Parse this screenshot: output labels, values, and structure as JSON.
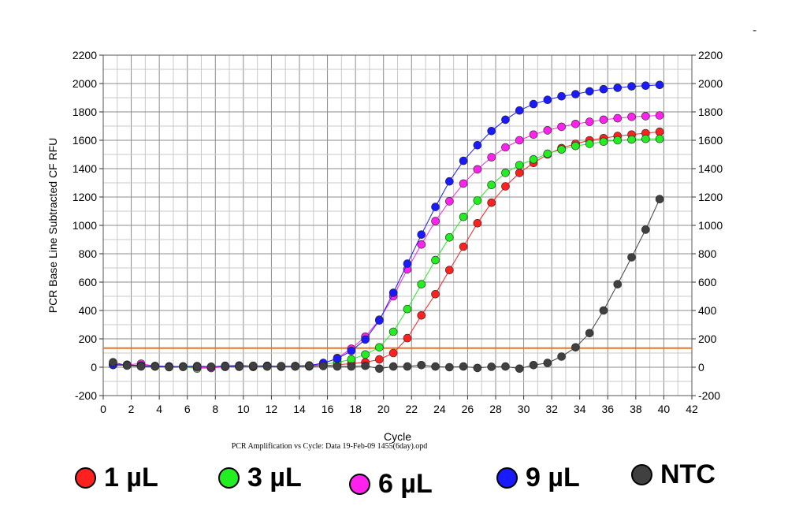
{
  "chart_data": {
    "type": "line",
    "title": "",
    "ylabel": "PCR Base Line Subtracted CF RFU",
    "xlabel": "Cycle",
    "caption": "PCR Amplification vs Cycle: Data 19-Feb-09 1455(6day).opd",
    "corner_mark": "-",
    "xlim": [
      0,
      42
    ],
    "ylim": [
      -200,
      2200
    ],
    "x_ticks": [
      0,
      2,
      4,
      6,
      8,
      10,
      12,
      14,
      16,
      18,
      20,
      22,
      24,
      26,
      28,
      30,
      32,
      34,
      36,
      38,
      40,
      42
    ],
    "y_ticks": [
      -200,
      0,
      200,
      400,
      600,
      800,
      1000,
      1200,
      1400,
      1600,
      1800,
      2000,
      2200
    ],
    "grid": true,
    "threshold": {
      "value": 135,
      "color": "#e87722"
    },
    "x": [
      0.7,
      1.7,
      2.7,
      3.7,
      4.7,
      5.7,
      6.7,
      7.7,
      8.7,
      9.7,
      10.7,
      11.7,
      12.7,
      13.7,
      14.7,
      15.7,
      16.7,
      17.7,
      18.7,
      19.7,
      20.7,
      21.7,
      22.7,
      23.7,
      24.7,
      25.7,
      26.7,
      27.7,
      28.7,
      29.7,
      30.7,
      31.7,
      32.7,
      33.7,
      34.7,
      35.7,
      36.7,
      37.7,
      38.7,
      39.7
    ],
    "series": [
      {
        "name": "1 µL",
        "color": "#ff2020",
        "values": [
          15,
          12,
          10,
          5,
          3,
          5,
          -2,
          0,
          3,
          5,
          2,
          5,
          3,
          5,
          5,
          10,
          18,
          25,
          35,
          55,
          100,
          205,
          365,
          515,
          685,
          850,
          1015,
          1160,
          1275,
          1370,
          1440,
          1500,
          1545,
          1575,
          1600,
          1615,
          1630,
          1640,
          1650,
          1660
        ]
      },
      {
        "name": "3 µL",
        "color": "#22ee22",
        "values": [
          18,
          15,
          12,
          8,
          5,
          3,
          -10,
          -5,
          5,
          3,
          5,
          8,
          5,
          8,
          10,
          18,
          35,
          55,
          90,
          140,
          250,
          410,
          585,
          755,
          915,
          1060,
          1175,
          1285,
          1370,
          1425,
          1465,
          1505,
          1535,
          1560,
          1575,
          1590,
          1600,
          1605,
          1610,
          1610
        ]
      },
      {
        "name": "6 µL",
        "color": "#ff22ee",
        "values": [
          20,
          18,
          25,
          8,
          5,
          3,
          0,
          -5,
          3,
          5,
          8,
          10,
          5,
          8,
          12,
          25,
          65,
          130,
          215,
          335,
          500,
          690,
          865,
          1030,
          1170,
          1295,
          1395,
          1480,
          1550,
          1600,
          1640,
          1670,
          1695,
          1715,
          1730,
          1745,
          1755,
          1765,
          1770,
          1775
        ]
      },
      {
        "name": "9 µL",
        "color": "#1a1aff",
        "values": [
          18,
          15,
          12,
          8,
          5,
          5,
          8,
          3,
          10,
          12,
          8,
          10,
          5,
          8,
          12,
          30,
          60,
          115,
          195,
          330,
          525,
          730,
          935,
          1130,
          1310,
          1455,
          1565,
          1665,
          1745,
          1810,
          1855,
          1885,
          1910,
          1925,
          1945,
          1960,
          1970,
          1980,
          1985,
          1990
        ]
      },
      {
        "name": "NTC",
        "color": "#404040",
        "values": [
          35,
          12,
          5,
          5,
          0,
          3,
          5,
          3,
          5,
          5,
          10,
          5,
          8,
          5,
          10,
          8,
          5,
          5,
          10,
          -10,
          5,
          5,
          15,
          5,
          0,
          5,
          -5,
          3,
          5,
          -10,
          15,
          30,
          75,
          140,
          240,
          400,
          585,
          775,
          970,
          1185
        ]
      }
    ]
  },
  "legend": [
    {
      "label": "1 µL",
      "color": "#ff2020"
    },
    {
      "label": "3 µL",
      "color": "#22ee22"
    },
    {
      "label": "6 µL",
      "color": "#ff22ee"
    },
    {
      "label": "9 µL",
      "color": "#1a1aff"
    },
    {
      "label": "NTC",
      "color": "#404040"
    }
  ]
}
